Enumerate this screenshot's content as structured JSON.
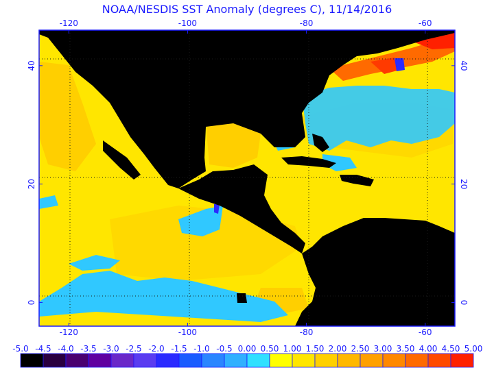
{
  "title": "NOAA/NESDIS SST Anomaly (degrees C), 11/14/2016",
  "map": {
    "lon_ticks": [
      {
        "value": -120,
        "label": "-120"
      },
      {
        "value": -100,
        "label": "-100"
      },
      {
        "value": -80,
        "label": "-80"
      },
      {
        "value": -60,
        "label": "-60"
      }
    ],
    "lat_ticks": [
      {
        "value": 40,
        "label": "40"
      },
      {
        "value": 20,
        "label": "20"
      },
      {
        "value": 0,
        "label": "0"
      }
    ],
    "land_color": "#000000",
    "ocean_base_color": "#ffe600",
    "frame_color": "#1a1aff"
  },
  "colorbar": {
    "labels": [
      "-5.0",
      "-4.5",
      "-4.0",
      "-3.5",
      "-3.0",
      "-2.5",
      "-2.0",
      "-1.5",
      "-1.0",
      "-0.5",
      "0.00",
      "0.50",
      "1.00",
      "1.50",
      "2.00",
      "2.50",
      "3.00",
      "3.50",
      "4.00",
      "4.50",
      "5.00"
    ],
    "colors": [
      "#000000",
      "#2a0040",
      "#4a0070",
      "#6000a0",
      "#6a28c8",
      "#5a3cf0",
      "#2a2aff",
      "#1a5cff",
      "#2a86ff",
      "#30b0ff",
      "#30e0ff",
      "#ffff00",
      "#ffe600",
      "#ffd000",
      "#ffb800",
      "#ffa000",
      "#ff8800",
      "#ff6a00",
      "#ff4a00",
      "#ff2000"
    ]
  }
}
